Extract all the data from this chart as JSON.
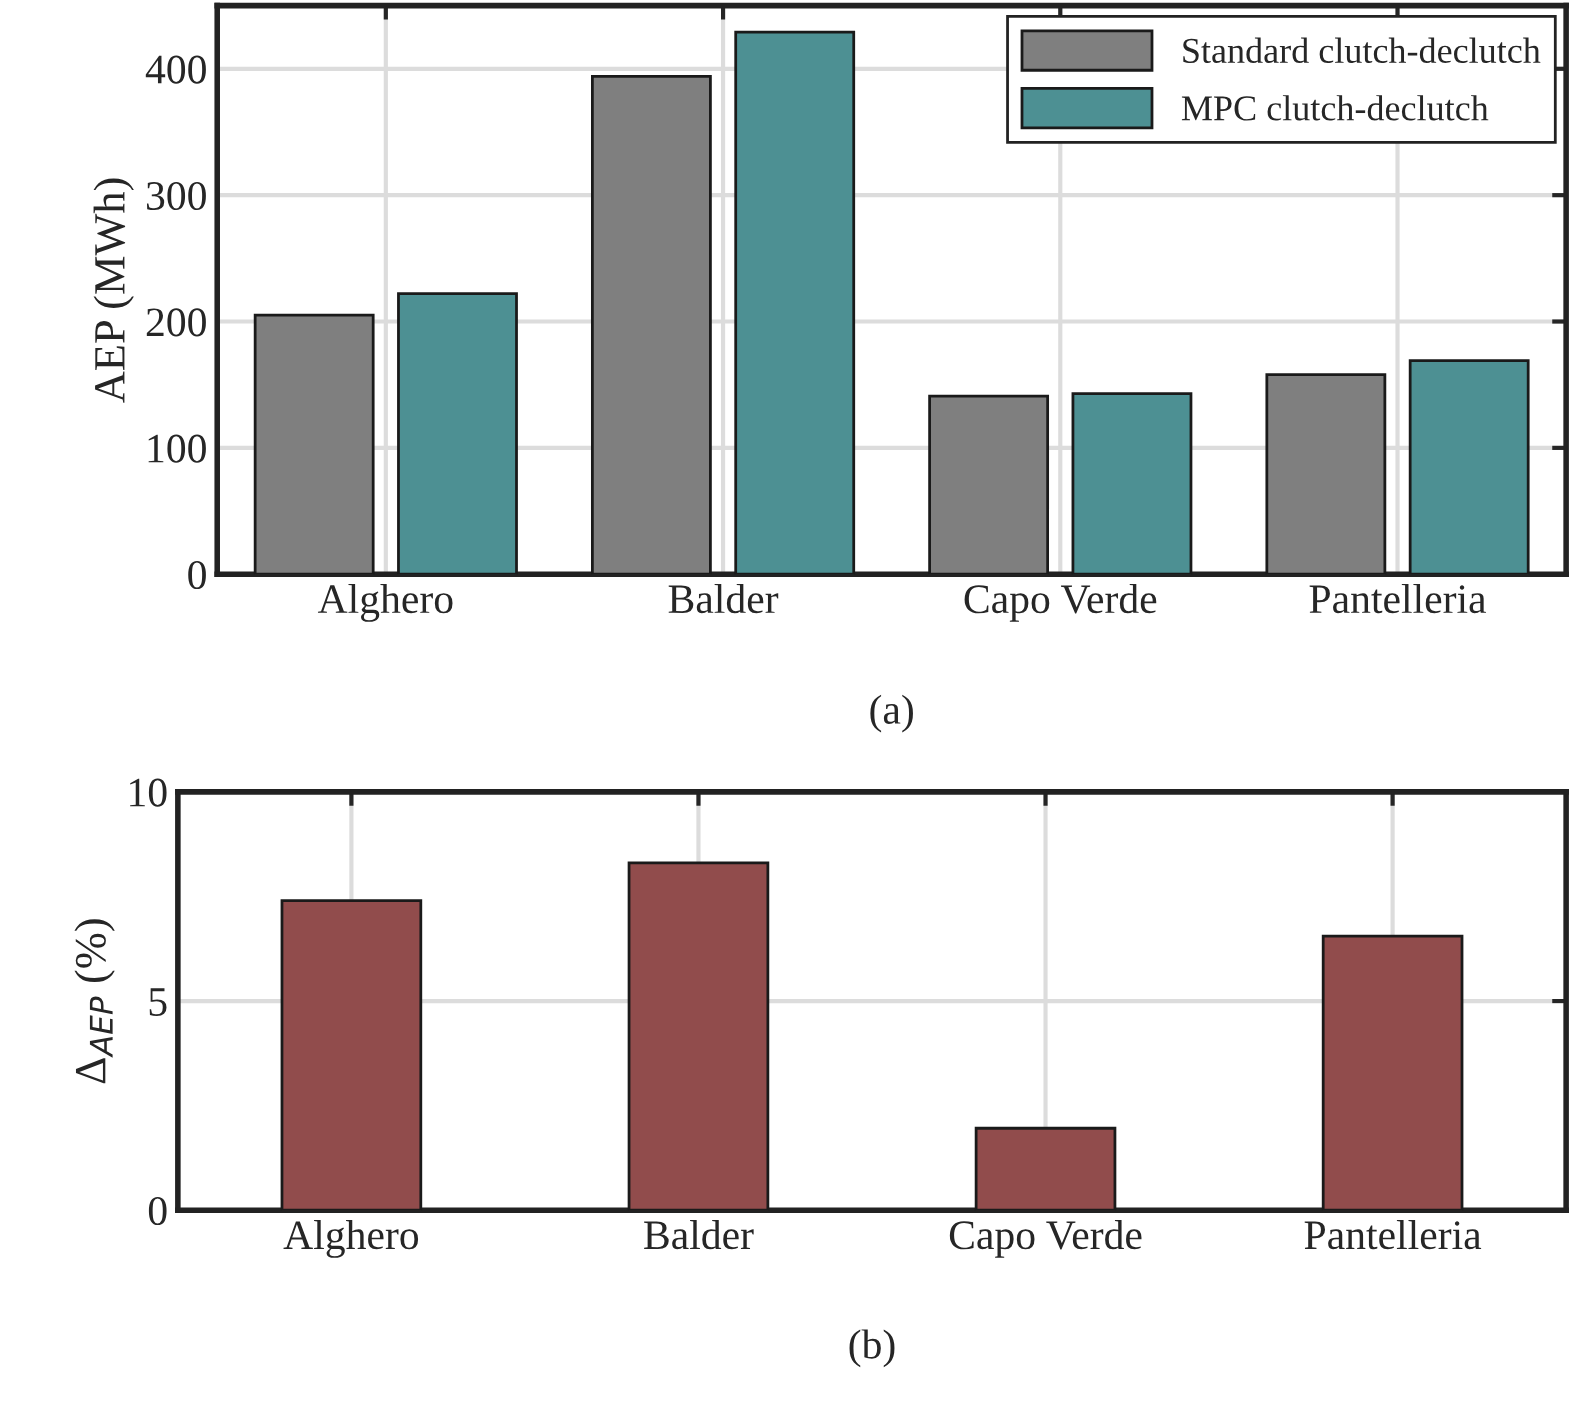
{
  "chart_data": [
    {
      "type": "bar",
      "ylabel": "AEP (MWh)",
      "categories": [
        "Alghero",
        "Balder",
        "Capo Verde",
        "Pantelleria"
      ],
      "series": [
        {
          "name": "Standard clutch-declutch",
          "color": "#7f7f7f",
          "values": [
            205,
            394,
            141,
            158
          ]
        },
        {
          "name": "MPC clutch-declutch",
          "color": "#4d9093",
          "values": [
            222,
            429,
            143,
            169
          ]
        }
      ],
      "ylim": [
        0,
        450
      ],
      "yticks": [
        0,
        100,
        200,
        300,
        400
      ],
      "grid": true,
      "legend": "top right",
      "annotations": [
        "(a)"
      ]
    },
    {
      "type": "bar",
      "ylabel": "Δ$_{AEP}$ (%)",
      "categories": [
        "Alghero",
        "Balder",
        "Capo Verde",
        "Pantelleria"
      ],
      "values": [
        7.4,
        8.3,
        1.96,
        6.55
      ],
      "color": "#914c4c",
      "ylim": [
        0,
        10
      ],
      "yticks": [
        0,
        5,
        10
      ],
      "grid": true,
      "annotations": [
        "(b)"
      ]
    }
  ]
}
